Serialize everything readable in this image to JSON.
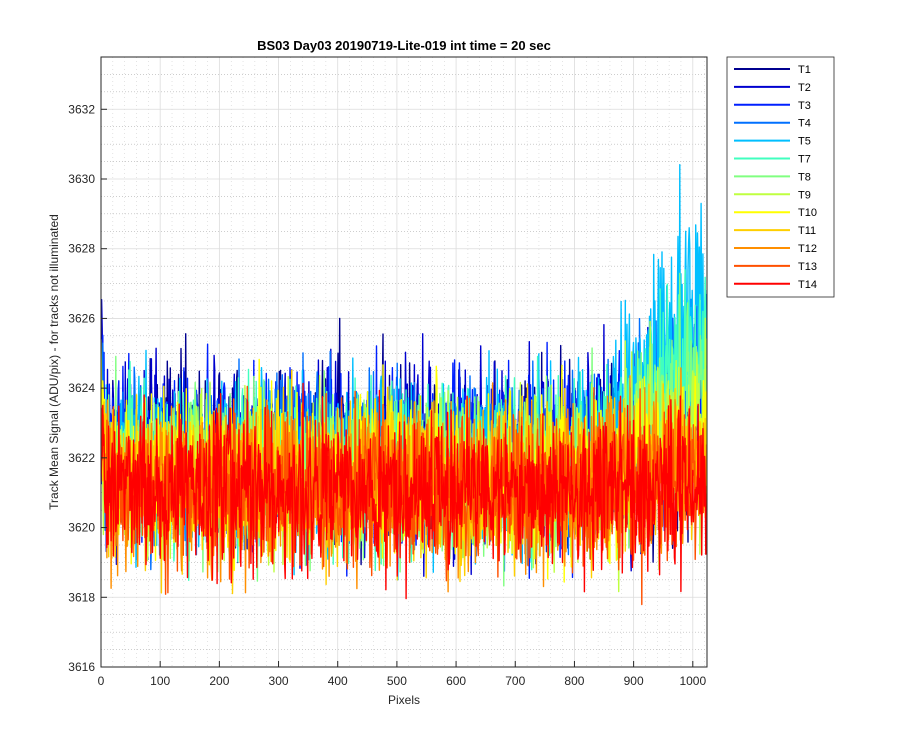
{
  "chart_data": {
    "type": "line",
    "title": "BS03 Day03 20190719-Lite-019 int time = 20 sec",
    "xlabel": "Pixels",
    "ylabel": "Track Mean Signal (ADU/pix) - for tracks not illuminated",
    "xlim": [
      0,
      1024
    ],
    "ylim": [
      3616,
      3633.5
    ],
    "xticks": [
      0,
      100,
      200,
      300,
      400,
      500,
      600,
      700,
      800,
      900,
      1000
    ],
    "yticks": [
      3616,
      3618,
      3620,
      3622,
      3624,
      3626,
      3628,
      3630,
      3632
    ],
    "grid": "major and minor (dotted)",
    "legend_position": "outside-right",
    "num_points": 1024,
    "series": [
      {
        "name": "T1",
        "color": "#00008f",
        "mean": 3622.2,
        "noise": 1.25,
        "edge_rise": 0.0
      },
      {
        "name": "T2",
        "color": "#0000cf",
        "mean": 3622.1,
        "noise": 1.25,
        "edge_rise": 1.5
      },
      {
        "name": "T3",
        "color": "#0020ff",
        "mean": 3622.0,
        "noise": 1.2,
        "edge_rise": 1.8
      },
      {
        "name": "T4",
        "color": "#0070ff",
        "mean": 3621.9,
        "noise": 1.2,
        "edge_rise": 3.2
      },
      {
        "name": "T5",
        "color": "#00bfff",
        "mean": 3621.8,
        "noise": 1.2,
        "edge_rise": 6.5
      },
      {
        "name": "T7",
        "color": "#40ffbf",
        "mean": 3621.7,
        "noise": 1.15,
        "edge_rise": 4.5
      },
      {
        "name": "T8",
        "color": "#80ff80",
        "mean": 3621.6,
        "noise": 1.15,
        "edge_rise": 2.8
      },
      {
        "name": "T9",
        "color": "#bfff40",
        "mean": 3621.5,
        "noise": 1.15,
        "edge_rise": 2.0
      },
      {
        "name": "T10",
        "color": "#ffff00",
        "mean": 3621.4,
        "noise": 1.15,
        "edge_rise": 1.2
      },
      {
        "name": "T11",
        "color": "#ffcf00",
        "mean": 3621.3,
        "noise": 1.1,
        "edge_rise": 0.8
      },
      {
        "name": "T12",
        "color": "#ff8f00",
        "mean": 3621.2,
        "noise": 1.1,
        "edge_rise": 0.6
      },
      {
        "name": "T13",
        "color": "#ff5000",
        "mean": 3621.1,
        "noise": 1.1,
        "edge_rise": 0.4
      },
      {
        "name": "T14",
        "color": "#ff0000",
        "mean": 3621.0,
        "noise": 1.1,
        "edge_rise": 0.3
      }
    ]
  }
}
